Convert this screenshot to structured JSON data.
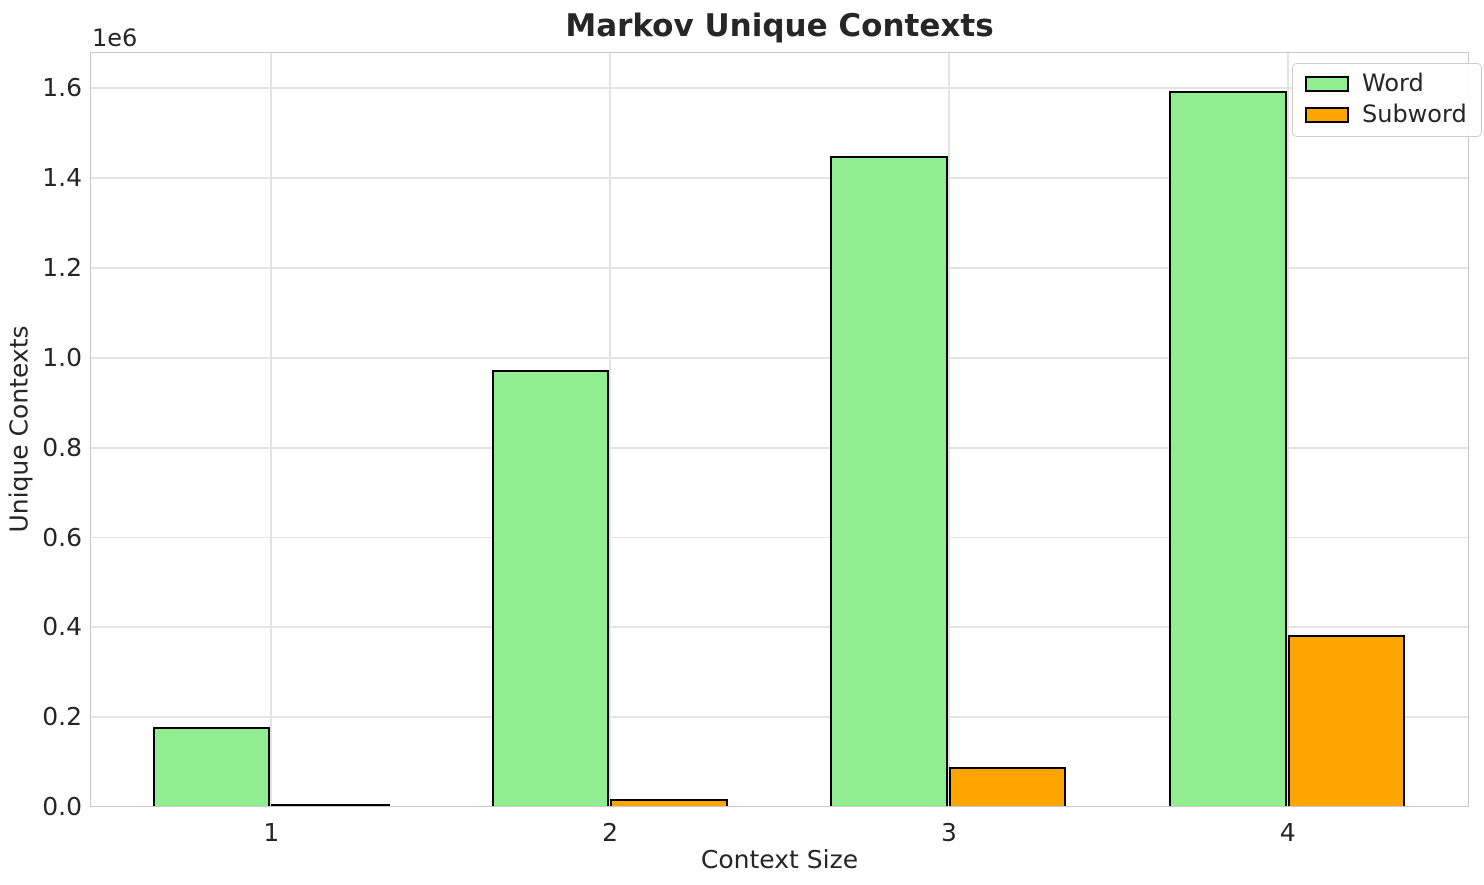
{
  "chart_data": {
    "type": "bar",
    "title": "Markov Unique Contexts",
    "xlabel": "Context Size",
    "ylabel": "Unique Contexts",
    "y_offset_label": "1e6",
    "categories": [
      "1",
      "2",
      "3",
      "4"
    ],
    "series": [
      {
        "name": "Word",
        "color": "#90EE90",
        "values": [
          180000,
          975000,
          1450000,
          1595000
        ]
      },
      {
        "name": "Subword",
        "color": "#FFA500",
        "values": [
          2000,
          18000,
          90000,
          385000
        ]
      }
    ],
    "bar_edge_color": "#000000",
    "bar_width": 0.35,
    "group_offset": 0.175,
    "xlim": [
      0.465,
      4.535
    ],
    "ylim": [
      0,
      1681000
    ],
    "yticks": {
      "values": [
        0,
        200000,
        400000,
        600000,
        800000,
        1000000,
        1200000,
        1400000,
        1600000
      ],
      "labels": [
        "0.0",
        "0.2",
        "0.4",
        "0.6",
        "0.8",
        "1.0",
        "1.2",
        "1.4",
        "1.6"
      ]
    },
    "grid": true,
    "legend_position": "upper right"
  }
}
